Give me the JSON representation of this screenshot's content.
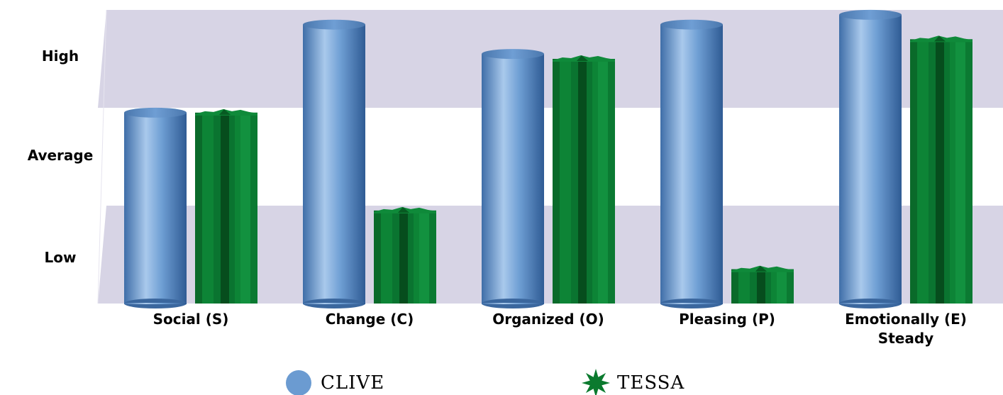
{
  "chart_data": {
    "type": "bar",
    "title": "",
    "xlabel": "",
    "ylabel": "",
    "y_bands": [
      "Low",
      "Average",
      "High"
    ],
    "ylim": [
      0,
      3
    ],
    "grid": false,
    "legend_position": "bottom",
    "categories": [
      "Social (S)",
      "Change (C)",
      "Organized (O)",
      "Pleasing (P)",
      "Emotionally (E) Steady"
    ],
    "category_lines": [
      [
        "Social (S)"
      ],
      [
        "Change (C)"
      ],
      [
        "Organized (O)"
      ],
      [
        "Pleasing (P)"
      ],
      [
        "Emotionally (E)",
        "Steady"
      ]
    ],
    "series": [
      {
        "name": "CLIVE",
        "marker": "circle",
        "color": "#6b9bd1",
        "values": [
          1.95,
          2.85,
          2.55,
          2.85,
          2.95
        ]
      },
      {
        "name": "TESSA",
        "marker": "star",
        "color": "#0b7a2e",
        "values": [
          1.95,
          0.95,
          2.5,
          0.35,
          2.7
        ]
      }
    ]
  }
}
